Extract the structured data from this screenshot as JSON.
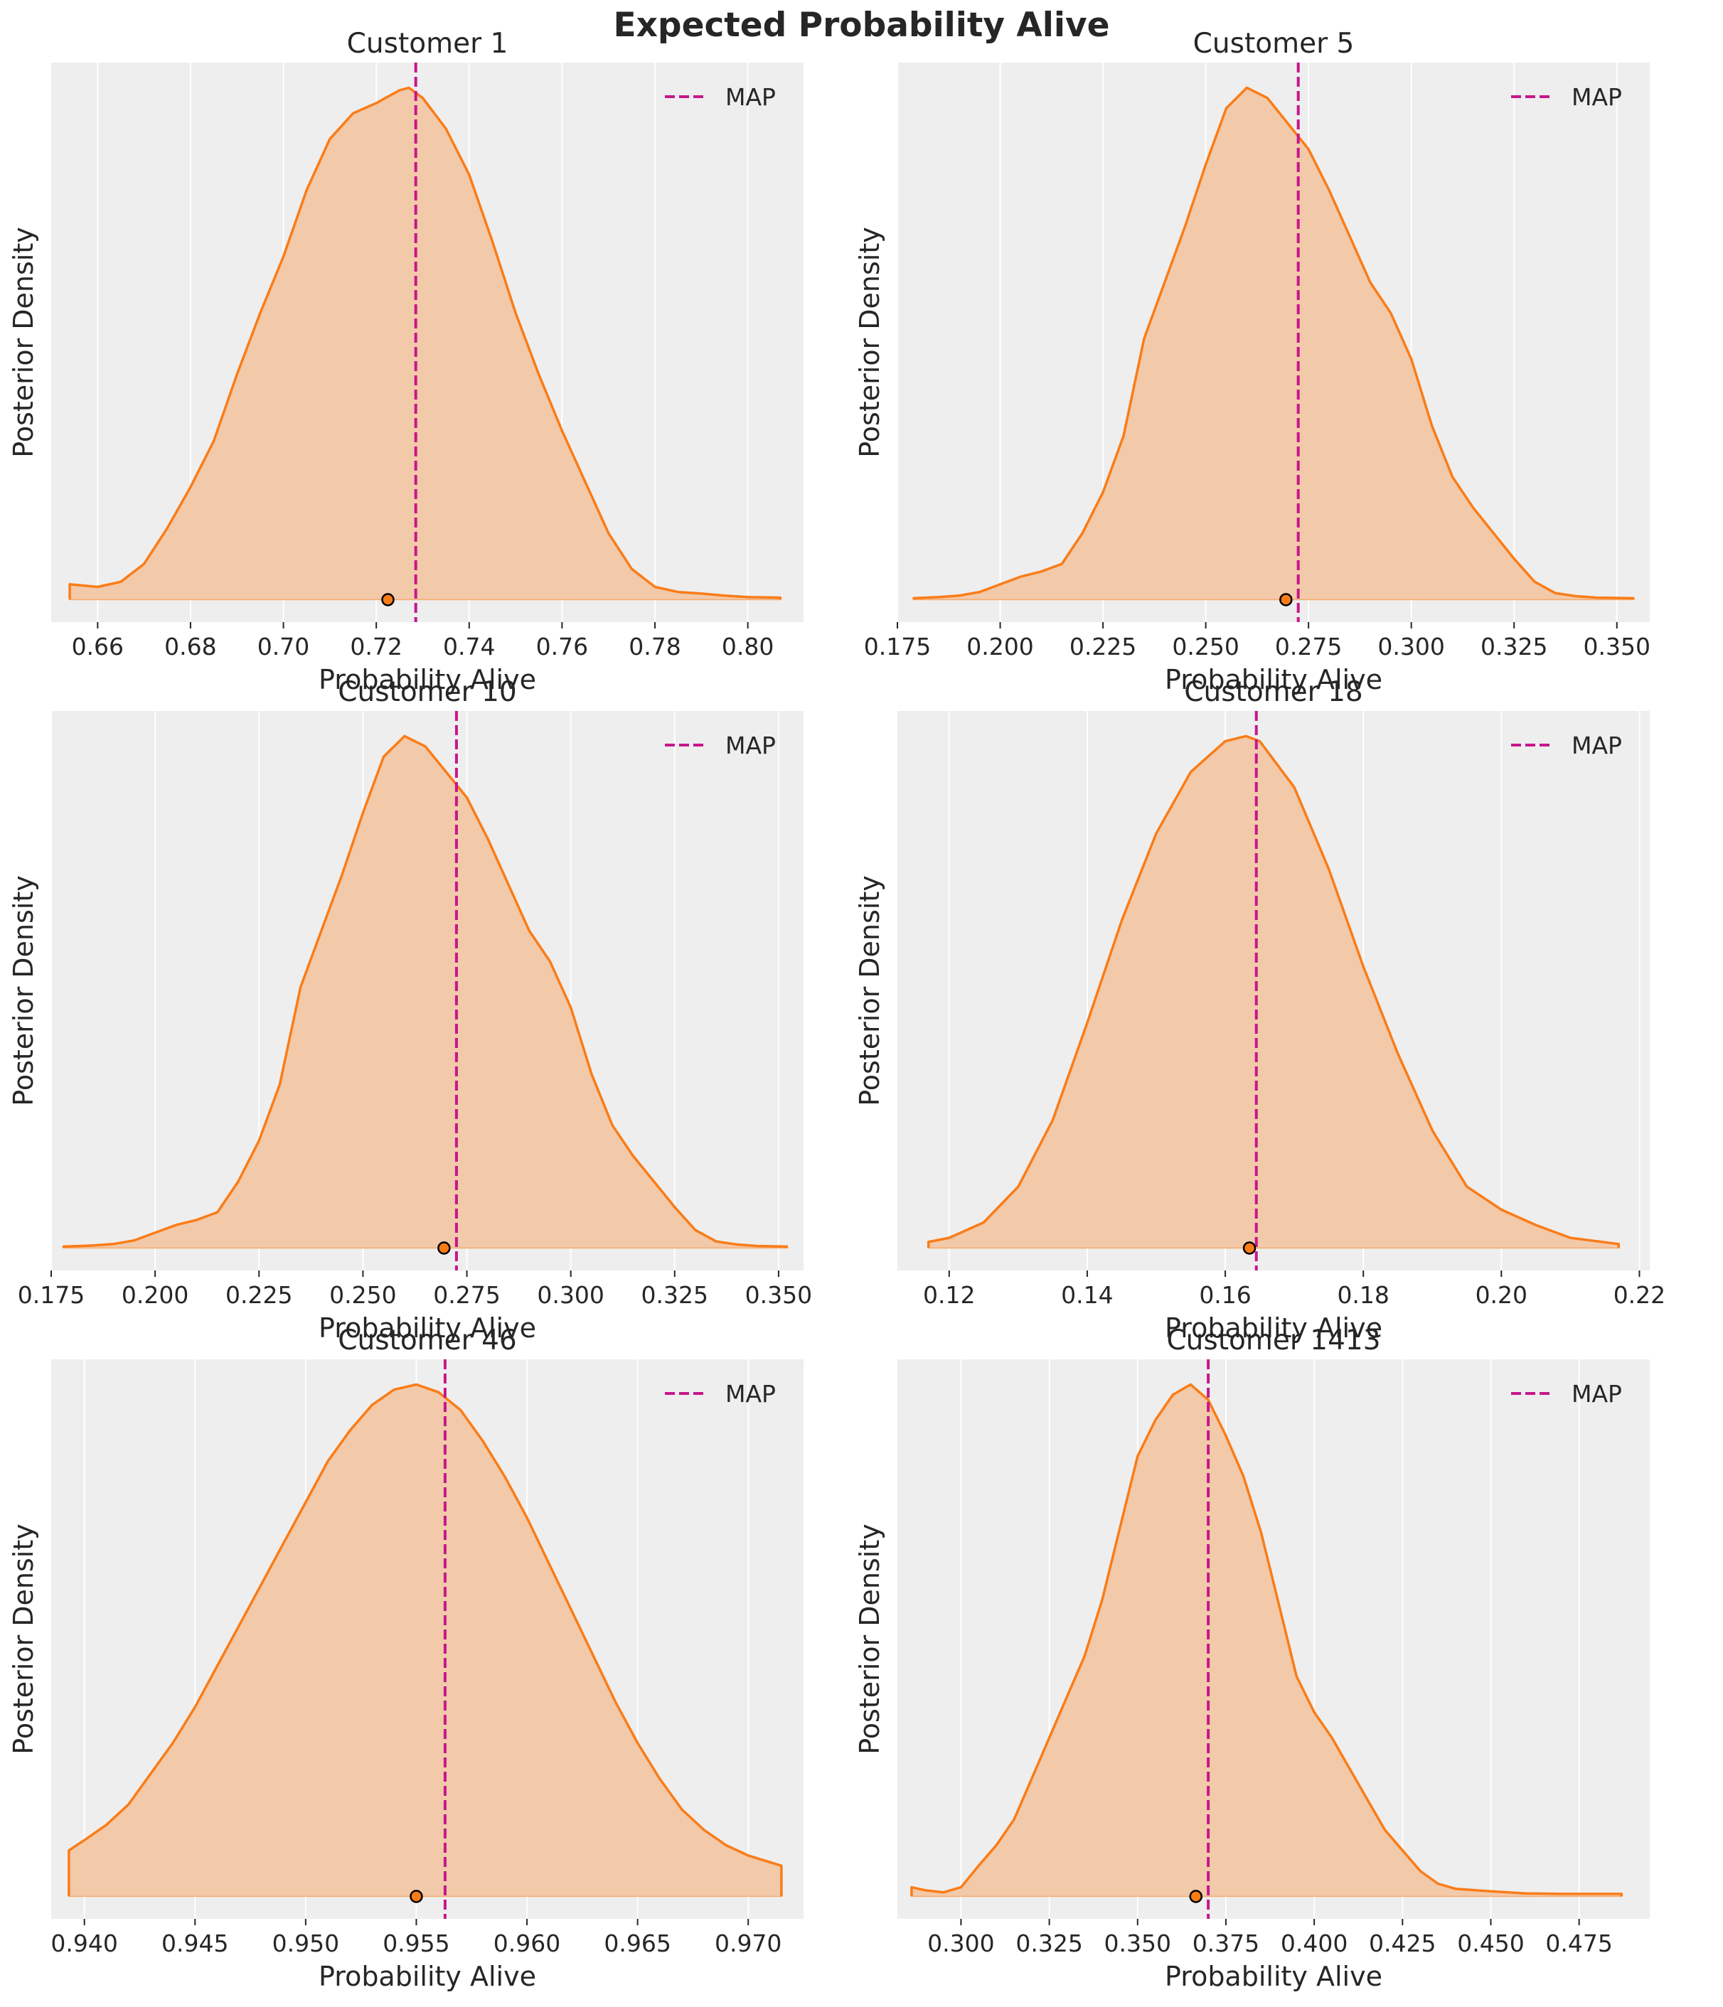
{
  "figure": {
    "title": "Expected Probability Alive",
    "colors": {
      "background": "#eeeeee",
      "grid": "#ffffff",
      "density_line": "#fa7c17",
      "density_fill": "#f2c9a9",
      "map_line": "#c7168b",
      "mean_marker": "#fa7c17"
    }
  },
  "chart_data": [
    {
      "type": "area",
      "title": "Customer 1",
      "xlabel": "Probability Alive",
      "ylabel": "Posterior Density",
      "legend": {
        "label": "MAP",
        "position": "top-right"
      },
      "xlim": [
        0.65,
        0.812
      ],
      "xticks": [
        0.66,
        0.68,
        0.7,
        0.72,
        0.74,
        0.76,
        0.78,
        0.8
      ],
      "xtick_labels": [
        "0.66",
        "0.68",
        "0.70",
        "0.72",
        "0.74",
        "0.76",
        "0.78",
        "0.80"
      ],
      "map": 0.7285,
      "mean": 0.7225,
      "density": {
        "x": [
          0.654,
          0.66,
          0.665,
          0.67,
          0.675,
          0.68,
          0.685,
          0.69,
          0.695,
          0.7,
          0.705,
          0.71,
          0.715,
          0.72,
          0.725,
          0.727,
          0.73,
          0.735,
          0.74,
          0.745,
          0.75,
          0.755,
          0.76,
          0.765,
          0.77,
          0.775,
          0.78,
          0.785,
          0.79,
          0.795,
          0.8,
          0.807
        ],
        "y": [
          0.03,
          0.025,
          0.035,
          0.07,
          0.14,
          0.22,
          0.31,
          0.44,
          0.56,
          0.67,
          0.8,
          0.9,
          0.95,
          0.97,
          0.995,
          1.0,
          0.98,
          0.92,
          0.83,
          0.7,
          0.56,
          0.44,
          0.33,
          0.23,
          0.13,
          0.06,
          0.025,
          0.015,
          0.012,
          0.008,
          0.005,
          0.004
        ]
      }
    },
    {
      "type": "area",
      "title": "Customer 5",
      "xlabel": "Probability Alive",
      "ylabel": "Posterior Density",
      "legend": {
        "label": "MAP",
        "position": "top-right"
      },
      "xlim": [
        0.175,
        0.358
      ],
      "xticks": [
        0.175,
        0.2,
        0.225,
        0.25,
        0.275,
        0.3,
        0.325,
        0.35
      ],
      "xtick_labels": [
        "0.175",
        "0.200",
        "0.225",
        "0.250",
        "0.275",
        "0.300",
        "0.325",
        "0.350"
      ],
      "map": 0.2725,
      "mean": 0.2695,
      "density": {
        "x": [
          0.179,
          0.185,
          0.19,
          0.195,
          0.2,
          0.205,
          0.21,
          0.215,
          0.22,
          0.225,
          0.23,
          0.235,
          0.24,
          0.245,
          0.25,
          0.255,
          0.26,
          0.265,
          0.27,
          0.275,
          0.28,
          0.285,
          0.29,
          0.295,
          0.3,
          0.305,
          0.31,
          0.315,
          0.32,
          0.325,
          0.33,
          0.335,
          0.34,
          0.345,
          0.354
        ],
        "y": [
          0.003,
          0.005,
          0.008,
          0.015,
          0.03,
          0.045,
          0.055,
          0.07,
          0.13,
          0.21,
          0.32,
          0.51,
          0.62,
          0.73,
          0.85,
          0.96,
          1.0,
          0.98,
          0.93,
          0.88,
          0.8,
          0.71,
          0.62,
          0.56,
          0.47,
          0.34,
          0.24,
          0.18,
          0.13,
          0.08,
          0.035,
          0.013,
          0.007,
          0.004,
          0.003
        ]
      }
    },
    {
      "type": "area",
      "title": "Customer 10",
      "xlabel": "Probability Alive",
      "ylabel": "Posterior Density",
      "legend": {
        "label": "MAP",
        "position": "top-right"
      },
      "xlim": [
        0.175,
        0.356
      ],
      "xticks": [
        0.175,
        0.2,
        0.225,
        0.25,
        0.275,
        0.3,
        0.325,
        0.35
      ],
      "xtick_labels": [
        "0.175",
        "0.200",
        "0.225",
        "0.250",
        "0.275",
        "0.300",
        "0.325",
        "0.350"
      ],
      "map": 0.2725,
      "mean": 0.2695,
      "density": {
        "x": [
          0.178,
          0.185,
          0.19,
          0.195,
          0.2,
          0.205,
          0.21,
          0.215,
          0.22,
          0.225,
          0.23,
          0.235,
          0.24,
          0.245,
          0.25,
          0.255,
          0.26,
          0.265,
          0.27,
          0.275,
          0.28,
          0.285,
          0.29,
          0.295,
          0.3,
          0.305,
          0.31,
          0.315,
          0.32,
          0.325,
          0.33,
          0.335,
          0.34,
          0.345,
          0.352
        ],
        "y": [
          0.003,
          0.005,
          0.008,
          0.015,
          0.03,
          0.045,
          0.055,
          0.07,
          0.13,
          0.21,
          0.32,
          0.51,
          0.62,
          0.73,
          0.85,
          0.96,
          1.0,
          0.98,
          0.93,
          0.88,
          0.8,
          0.71,
          0.62,
          0.56,
          0.47,
          0.34,
          0.24,
          0.18,
          0.13,
          0.08,
          0.035,
          0.013,
          0.007,
          0.004,
          0.003
        ]
      }
    },
    {
      "type": "area",
      "title": "Customer 18",
      "xlabel": "Probability Alive",
      "ylabel": "Posterior Density",
      "legend": {
        "label": "MAP",
        "position": "top-right"
      },
      "xlim": [
        0.1125,
        0.2215
      ],
      "xticks": [
        0.12,
        0.14,
        0.16,
        0.18,
        0.2,
        0.22
      ],
      "xtick_labels": [
        "0.12",
        "0.14",
        "0.16",
        "0.18",
        "0.20",
        "0.22"
      ],
      "map": 0.1645,
      "mean": 0.1635,
      "density": {
        "x": [
          0.117,
          0.12,
          0.125,
          0.13,
          0.135,
          0.14,
          0.145,
          0.15,
          0.155,
          0.16,
          0.163,
          0.165,
          0.17,
          0.175,
          0.18,
          0.185,
          0.19,
          0.195,
          0.2,
          0.205,
          0.21,
          0.217
        ],
        "y": [
          0.012,
          0.02,
          0.05,
          0.12,
          0.25,
          0.44,
          0.64,
          0.81,
          0.93,
          0.99,
          1.0,
          0.99,
          0.9,
          0.74,
          0.55,
          0.38,
          0.23,
          0.12,
          0.075,
          0.045,
          0.02,
          0.008
        ]
      }
    },
    {
      "type": "area",
      "title": "Customer 46",
      "xlabel": "Probability Alive",
      "ylabel": "Posterior Density",
      "legend": {
        "label": "MAP",
        "position": "top-right"
      },
      "xlim": [
        0.9385,
        0.9725
      ],
      "xticks": [
        0.94,
        0.945,
        0.95,
        0.955,
        0.96,
        0.965,
        0.97
      ],
      "xtick_labels": [
        "0.940",
        "0.945",
        "0.950",
        "0.955",
        "0.960",
        "0.965",
        "0.970"
      ],
      "map": 0.9563,
      "mean": 0.955,
      "density": {
        "x": [
          0.9393,
          0.94,
          0.941,
          0.942,
          0.943,
          0.944,
          0.945,
          0.946,
          0.947,
          0.948,
          0.949,
          0.95,
          0.951,
          0.952,
          0.953,
          0.954,
          0.955,
          0.956,
          0.957,
          0.958,
          0.959,
          0.96,
          0.961,
          0.962,
          0.963,
          0.964,
          0.965,
          0.966,
          0.967,
          0.968,
          0.969,
          0.97,
          0.9715
        ],
        "y": [
          0.09,
          0.11,
          0.14,
          0.18,
          0.24,
          0.3,
          0.37,
          0.45,
          0.53,
          0.61,
          0.69,
          0.77,
          0.85,
          0.91,
          0.96,
          0.99,
          1.0,
          0.985,
          0.95,
          0.89,
          0.82,
          0.74,
          0.65,
          0.56,
          0.47,
          0.38,
          0.3,
          0.23,
          0.17,
          0.13,
          0.1,
          0.08,
          0.06
        ]
      }
    },
    {
      "type": "area",
      "title": "Customer 1413",
      "xlabel": "Probability Alive",
      "ylabel": "Posterior Density",
      "legend": {
        "label": "MAP",
        "position": "top-right"
      },
      "xlim": [
        0.282,
        0.495
      ],
      "xticks": [
        0.3,
        0.325,
        0.35,
        0.375,
        0.4,
        0.425,
        0.45,
        0.475
      ],
      "xtick_labels": [
        "0.300",
        "0.325",
        "0.350",
        "0.375",
        "0.400",
        "0.425",
        "0.450",
        "0.475"
      ],
      "map": 0.37,
      "mean": 0.3665,
      "density": {
        "x": [
          0.286,
          0.29,
          0.295,
          0.3,
          0.305,
          0.31,
          0.315,
          0.32,
          0.325,
          0.33,
          0.335,
          0.34,
          0.345,
          0.35,
          0.355,
          0.36,
          0.365,
          0.37,
          0.375,
          0.38,
          0.385,
          0.39,
          0.395,
          0.4,
          0.405,
          0.41,
          0.415,
          0.42,
          0.425,
          0.43,
          0.435,
          0.44,
          0.45,
          0.46,
          0.47,
          0.48,
          0.487
        ],
        "y": [
          0.018,
          0.012,
          0.008,
          0.018,
          0.06,
          0.1,
          0.15,
          0.23,
          0.31,
          0.39,
          0.47,
          0.58,
          0.72,
          0.86,
          0.93,
          0.98,
          1.0,
          0.97,
          0.9,
          0.82,
          0.71,
          0.57,
          0.43,
          0.36,
          0.31,
          0.25,
          0.19,
          0.13,
          0.09,
          0.05,
          0.025,
          0.015,
          0.01,
          0.006,
          0.005,
          0.005,
          0.005
        ]
      }
    }
  ]
}
